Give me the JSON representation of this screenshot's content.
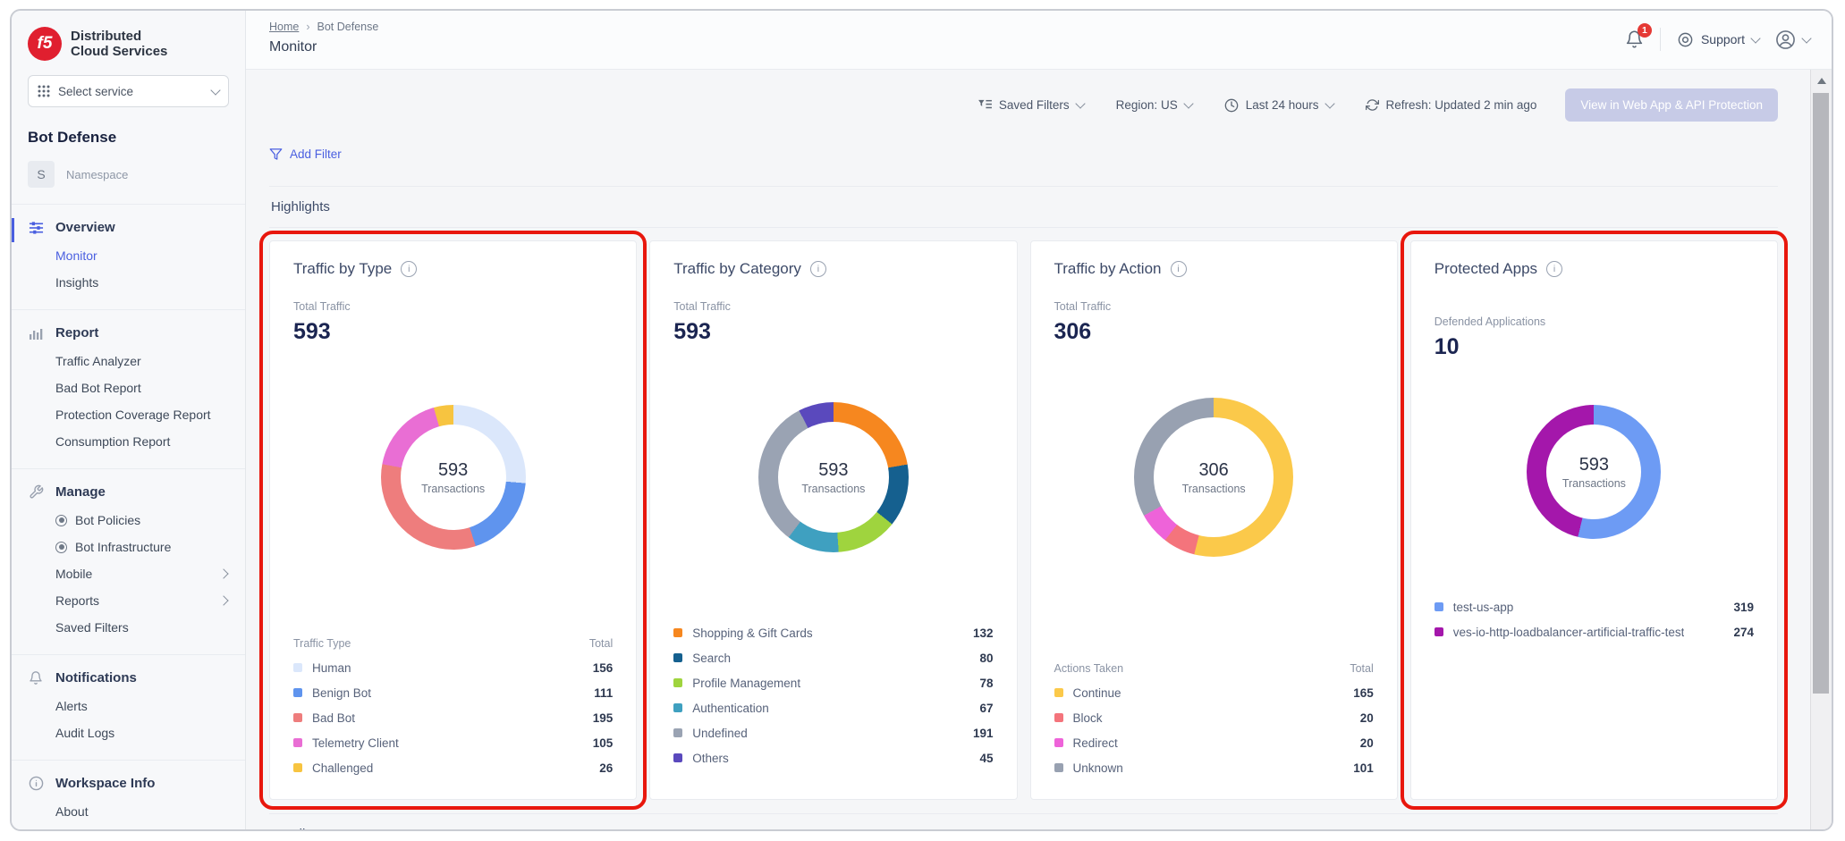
{
  "brand": {
    "logo_text": "f5",
    "name_line1": "Distributed",
    "name_line2": "Cloud Services"
  },
  "sidebar": {
    "service_selector": "Select service",
    "product": "Bot Defense",
    "namespace": {
      "initial": "S",
      "label": "Namespace"
    },
    "sections": [
      {
        "label": "Overview",
        "active": true,
        "items": [
          {
            "label": "Monitor",
            "active": true
          },
          {
            "label": "Insights"
          }
        ]
      },
      {
        "label": "Report",
        "items": [
          {
            "label": "Traffic Analyzer"
          },
          {
            "label": "Bad Bot Report"
          },
          {
            "label": "Protection Coverage Report"
          },
          {
            "label": "Consumption Report"
          }
        ]
      },
      {
        "label": "Manage",
        "items": [
          {
            "label": "Bot Policies",
            "bullet": true
          },
          {
            "label": "Bot Infrastructure",
            "bullet": true
          },
          {
            "label": "Mobile",
            "chevron": true
          },
          {
            "label": "Reports",
            "chevron": true
          },
          {
            "label": "Saved Filters"
          }
        ]
      },
      {
        "label": "Notifications",
        "items": [
          {
            "label": "Alerts"
          },
          {
            "label": "Audit Logs"
          }
        ]
      },
      {
        "label": "Workspace Info",
        "items": [
          {
            "label": "About"
          }
        ]
      }
    ]
  },
  "header": {
    "breadcrumb_home": "Home",
    "breadcrumb_separator": "›",
    "breadcrumb_current": "Bot Defense",
    "title": "Monitor",
    "notification_count": "1",
    "support_label": "Support"
  },
  "toolbar": {
    "saved_filters": "Saved Filters",
    "region": "Region: US",
    "time_range": "Last 24 hours",
    "refresh": "Refresh: Updated 2 min ago",
    "view_button": "View in Web App & API Protection",
    "add_filter": "Add Filter"
  },
  "sections": {
    "highlights": "Highlights",
    "details": "Details"
  },
  "annotations": {
    "highlight_color": "#e8170d",
    "highlighted_cards": [
      "Traffic by Type",
      "Protected Apps"
    ]
  },
  "cards": [
    {
      "title": "Traffic by Type",
      "metric_label": "Total Traffic",
      "metric_value": "593",
      "center_value": "593",
      "center_label": "Transactions",
      "legend_header": {
        "name": "Traffic Type",
        "total": "Total"
      }
    },
    {
      "title": "Traffic by Category",
      "metric_label": "Total Traffic",
      "metric_value": "593",
      "center_value": "593",
      "center_label": "Transactions"
    },
    {
      "title": "Traffic by Action",
      "metric_label": "Total Traffic",
      "metric_value": "306",
      "center_value": "306",
      "center_label": "Transactions",
      "legend_header": {
        "name": "Actions Taken",
        "total": "Total"
      }
    },
    {
      "title": "Protected Apps",
      "metric_label": "Defended Applications",
      "metric_value": "10",
      "center_value": "593",
      "center_label": "Transactions"
    }
  ],
  "chart_data": [
    {
      "type": "pie",
      "title": "Traffic by Type",
      "total": 593,
      "center_text": "593 Transactions",
      "legend_position": "bottom",
      "categories": [
        "Human",
        "Benign Bot",
        "Bad Bot",
        "Telemetry Client",
        "Challenged"
      ],
      "values": [
        156,
        111,
        195,
        105,
        26
      ],
      "colors": [
        "#dbe7fb",
        "#5f94ee",
        "#ee7d7d",
        "#e96ed4",
        "#f7c440"
      ]
    },
    {
      "type": "pie",
      "title": "Traffic by Category",
      "total": 593,
      "center_text": "593 Transactions",
      "legend_position": "bottom",
      "categories": [
        "Shopping & Gift Cards",
        "Search",
        "Profile Management",
        "Authentication",
        "Undefined",
        "Others"
      ],
      "values": [
        132,
        80,
        78,
        67,
        191,
        45
      ],
      "colors": [
        "#f6871f",
        "#15608f",
        "#9fd43e",
        "#3fa0c0",
        "#9aa3b3",
        "#5a49bd"
      ]
    },
    {
      "type": "pie",
      "title": "Traffic by Action",
      "total": 306,
      "center_text": "306 Transactions",
      "legend_position": "bottom",
      "categories": [
        "Continue",
        "Block",
        "Redirect",
        "Unknown"
      ],
      "values": [
        165,
        20,
        20,
        101
      ],
      "colors": [
        "#fbc94a",
        "#f4747c",
        "#ee63d9",
        "#98a1b1"
      ]
    },
    {
      "type": "pie",
      "title": "Protected Apps",
      "total": 593,
      "center_text": "593 Transactions",
      "legend_position": "bottom",
      "categories": [
        "test-us-app",
        "ves-io-http-loadbalancer-artificial-traffic-test"
      ],
      "values": [
        319,
        274
      ],
      "colors": [
        "#6d9bf4",
        "#a417ab"
      ]
    }
  ]
}
